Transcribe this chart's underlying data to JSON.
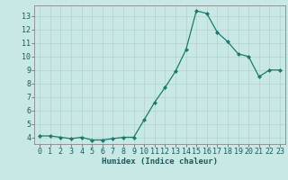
{
  "x": [
    0,
    1,
    2,
    3,
    4,
    5,
    6,
    7,
    8,
    9,
    10,
    11,
    12,
    13,
    14,
    15,
    16,
    17,
    18,
    19,
    20,
    21,
    22,
    23
  ],
  "y": [
    4.1,
    4.1,
    4.0,
    3.9,
    4.0,
    3.8,
    3.8,
    3.9,
    4.0,
    4.0,
    5.3,
    6.6,
    7.7,
    8.9,
    10.5,
    13.4,
    13.2,
    11.8,
    11.1,
    10.2,
    10.0,
    8.5,
    9.0,
    9.0
  ],
  "ylim": [
    3.5,
    13.8
  ],
  "yticks": [
    4,
    5,
    6,
    7,
    8,
    9,
    10,
    11,
    12,
    13
  ],
  "xlabel": "Humidex (Indice chaleur)",
  "line_color": "#1a7a6e",
  "marker_color": "#1a7a6e",
  "bg_color": "#c8e8e5",
  "grid_color_major": "#b8d4d0",
  "grid_color_minor": "#d0e6e3",
  "tick_color": "#1a5a5a",
  "xlabel_fontsize": 6.5,
  "tick_fontsize": 6.0
}
